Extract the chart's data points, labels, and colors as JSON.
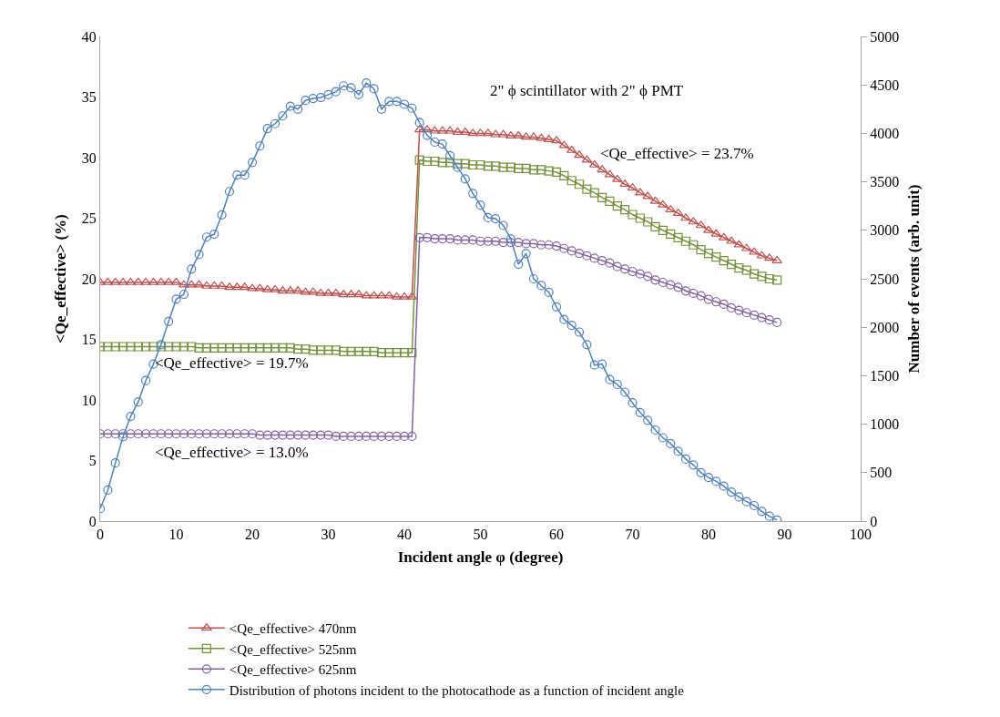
{
  "chart_data": {
    "type": "line",
    "xlabel": "Incident angle φ (degree)",
    "ylabel": "<Qe_effective> (%)",
    "y2label": "Number of events (arb. unit)",
    "x": [
      0,
      1,
      2,
      3,
      4,
      5,
      6,
      7,
      8,
      9,
      10,
      11,
      12,
      13,
      14,
      15,
      16,
      17,
      18,
      19,
      20,
      21,
      22,
      23,
      24,
      25,
      26,
      27,
      28,
      29,
      30,
      31,
      32,
      33,
      34,
      35,
      36,
      37,
      38,
      39,
      40,
      41,
      42,
      43,
      44,
      45,
      46,
      47,
      48,
      49,
      50,
      51,
      52,
      53,
      54,
      55,
      56,
      57,
      58,
      59,
      60,
      61,
      62,
      63,
      64,
      65,
      66,
      67,
      68,
      69,
      70,
      71,
      72,
      73,
      74,
      75,
      76,
      77,
      78,
      79,
      80,
      81,
      82,
      83,
      84,
      85,
      86,
      87,
      88,
      89
    ],
    "xlim": [
      0,
      100
    ],
    "xticks": [
      0,
      10,
      20,
      30,
      40,
      50,
      60,
      70,
      80,
      90,
      100
    ],
    "ylim": [
      0,
      40
    ],
    "yticks": [
      0,
      5,
      10,
      15,
      20,
      25,
      30,
      35,
      40
    ],
    "y2lim": [
      0,
      5000
    ],
    "y2ticks": [
      0,
      500,
      1000,
      1500,
      2000,
      2500,
      3000,
      3500,
      4000,
      4500,
      5000
    ],
    "legend": "bottom",
    "annotations": [
      "2\" ϕ scintillator with 2\" ϕ PMT",
      "<Qe_effective> = 23.7%",
      "<Qe_effective> = 19.7%",
      "<Qe_effective> = 13.0%"
    ],
    "series": [
      {
        "name": "<Qe_effective> 470nm",
        "color": "#c0504d",
        "marker": "triangle",
        "values": [
          19.7,
          19.7,
          19.7,
          19.7,
          19.7,
          19.7,
          19.7,
          19.7,
          19.7,
          19.7,
          19.7,
          19.5,
          19.5,
          19.5,
          19.4,
          19.4,
          19.4,
          19.3,
          19.3,
          19.3,
          19.2,
          19.2,
          19.1,
          19.1,
          19.0,
          19.0,
          19.0,
          18.9,
          18.9,
          18.8,
          18.8,
          18.8,
          18.7,
          18.7,
          18.7,
          18.6,
          18.6,
          18.6,
          18.6,
          18.5,
          18.5,
          18.5,
          32.3,
          32.3,
          32.2,
          32.2,
          32.2,
          32.1,
          32.1,
          32.0,
          32.0,
          32.0,
          31.9,
          31.9,
          31.8,
          31.8,
          31.7,
          31.7,
          31.6,
          31.5,
          31.4,
          31.0,
          30.6,
          30.2,
          29.8,
          29.4,
          29.0,
          28.6,
          28.2,
          27.8,
          27.5,
          27.1,
          26.8,
          26.4,
          26.1,
          25.7,
          25.4,
          25.0,
          24.7,
          24.4,
          24.0,
          23.7,
          23.4,
          23.1,
          22.8,
          22.5,
          22.2,
          21.9,
          21.7,
          21.5
        ]
      },
      {
        "name": "<Qe_effective> 525nm",
        "color": "#76923c",
        "marker": "square",
        "values": [
          14.4,
          14.4,
          14.4,
          14.4,
          14.4,
          14.4,
          14.4,
          14.4,
          14.4,
          14.4,
          14.4,
          14.4,
          14.4,
          14.3,
          14.3,
          14.3,
          14.3,
          14.3,
          14.3,
          14.3,
          14.3,
          14.3,
          14.3,
          14.3,
          14.3,
          14.3,
          14.2,
          14.2,
          14.1,
          14.1,
          14.1,
          14.1,
          14.0,
          14.0,
          14.0,
          14.0,
          14.0,
          13.9,
          13.9,
          13.9,
          13.9,
          13.9,
          29.8,
          29.7,
          29.7,
          29.6,
          29.6,
          29.5,
          29.5,
          29.4,
          29.4,
          29.3,
          29.3,
          29.2,
          29.2,
          29.1,
          29.1,
          29.0,
          29.0,
          28.9,
          28.8,
          28.5,
          28.1,
          27.8,
          27.4,
          27.1,
          26.7,
          26.4,
          26.0,
          25.7,
          25.3,
          25.0,
          24.7,
          24.3,
          24.0,
          23.7,
          23.4,
          23.1,
          22.8,
          22.4,
          22.1,
          21.8,
          21.5,
          21.2,
          20.9,
          20.7,
          20.4,
          20.2,
          20.0,
          19.9
        ]
      },
      {
        "name": "<Qe_effective> 625nm",
        "color": "#8064a2",
        "marker": "circle",
        "values": [
          7.2,
          7.2,
          7.2,
          7.2,
          7.2,
          7.2,
          7.2,
          7.2,
          7.2,
          7.2,
          7.2,
          7.2,
          7.2,
          7.2,
          7.2,
          7.2,
          7.2,
          7.2,
          7.2,
          7.2,
          7.2,
          7.1,
          7.1,
          7.1,
          7.1,
          7.1,
          7.1,
          7.1,
          7.1,
          7.1,
          7.1,
          7.0,
          7.0,
          7.0,
          7.0,
          7.0,
          7.0,
          7.0,
          7.0,
          7.0,
          7.0,
          7.0,
          23.4,
          23.4,
          23.3,
          23.3,
          23.3,
          23.2,
          23.2,
          23.2,
          23.1,
          23.1,
          23.1,
          23.0,
          23.0,
          23.0,
          22.9,
          22.9,
          22.8,
          22.8,
          22.7,
          22.5,
          22.3,
          22.1,
          21.9,
          21.7,
          21.5,
          21.3,
          21.0,
          20.8,
          20.6,
          20.4,
          20.2,
          19.9,
          19.7,
          19.5,
          19.3,
          19.0,
          18.8,
          18.6,
          18.3,
          18.1,
          17.9,
          17.6,
          17.4,
          17.2,
          17.0,
          16.8,
          16.6,
          16.4
        ]
      },
      {
        "name": "Distribution of photons incident to the photocathode as a function of incident angle",
        "color": "#4f81bd",
        "marker": "circle",
        "axis": "y2",
        "values": [
          130,
          320,
          600,
          870,
          1080,
          1230,
          1450,
          1620,
          1820,
          2060,
          2290,
          2340,
          2600,
          2750,
          2930,
          2960,
          3160,
          3400,
          3570,
          3570,
          3700,
          3870,
          4050,
          4100,
          4180,
          4280,
          4250,
          4340,
          4360,
          4370,
          4400,
          4430,
          4490,
          4470,
          4400,
          4520,
          4460,
          4250,
          4330,
          4330,
          4300,
          4260,
          4110,
          3980,
          3910,
          3890,
          3770,
          3650,
          3530,
          3380,
          3260,
          3130,
          3120,
          3050,
          2910,
          2650,
          2760,
          2500,
          2430,
          2360,
          2210,
          2080,
          2020,
          1950,
          1820,
          1610,
          1620,
          1460,
          1410,
          1330,
          1220,
          1120,
          1040,
          940,
          860,
          800,
          720,
          640,
          580,
          500,
          450,
          410,
          360,
          300,
          250,
          200,
          160,
          100,
          50,
          10
        ]
      }
    ]
  }
}
